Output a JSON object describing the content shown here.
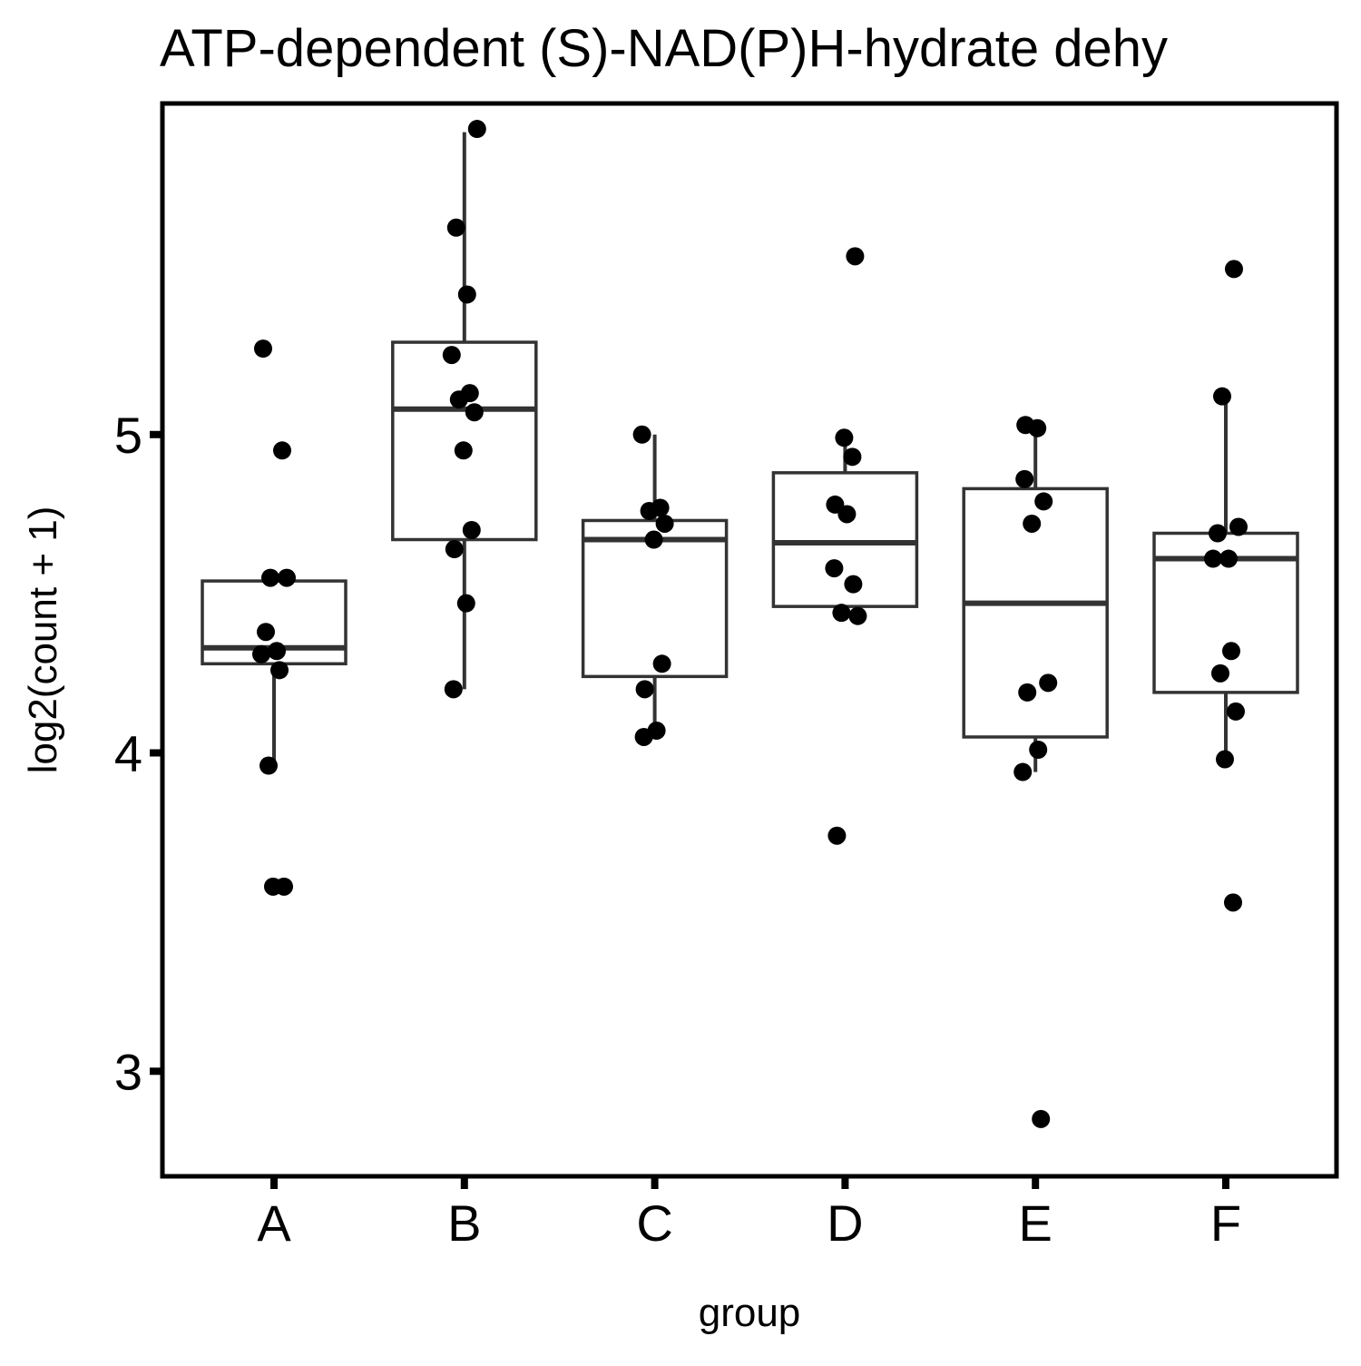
{
  "chart_data": {
    "type": "boxplot",
    "title": "ATP-dependent (S)-NAD(P)H-hydrate dehy",
    "xlabel": "group",
    "ylabel": "log2(count + 1)",
    "categories": [
      "A",
      "B",
      "C",
      "D",
      "E",
      "F"
    ],
    "y_ticks": [
      3,
      4,
      5
    ],
    "y_tick_labels": [
      "3",
      "4",
      "5"
    ],
    "ylim": [
      2.67,
      6.04
    ],
    "boxes": [
      {
        "group": "A",
        "lower_whisker": 3.95,
        "q1": 4.28,
        "median": 4.33,
        "q3": 4.54,
        "upper_whisker": 4.54
      },
      {
        "group": "B",
        "lower_whisker": 4.2,
        "q1": 4.67,
        "median": 5.08,
        "q3": 5.29,
        "upper_whisker": 5.95
      },
      {
        "group": "C",
        "lower_whisker": 4.05,
        "q1": 4.24,
        "median": 4.67,
        "q3": 4.73,
        "upper_whisker": 5.0
      },
      {
        "group": "D",
        "lower_whisker": 4.46,
        "q1": 4.46,
        "median": 4.66,
        "q3": 4.88,
        "upper_whisker": 4.98
      },
      {
        "group": "E",
        "lower_whisker": 3.94,
        "q1": 4.05,
        "median": 4.47,
        "q3": 4.83,
        "upper_whisker": 5.01
      },
      {
        "group": "F",
        "lower_whisker": 3.98,
        "q1": 4.19,
        "median": 4.61,
        "q3": 4.69,
        "upper_whisker": 5.12
      }
    ],
    "points": [
      {
        "group": "A",
        "values": [
          5.27,
          4.95,
          4.55,
          4.55,
          4.38,
          4.32,
          4.31,
          4.26,
          3.96,
          3.58,
          3.58
        ]
      },
      {
        "group": "B",
        "values": [
          5.96,
          5.65,
          5.44,
          5.25,
          5.13,
          5.11,
          5.07,
          4.95,
          4.7,
          4.64,
          4.47,
          4.2
        ]
      },
      {
        "group": "C",
        "values": [
          5.0,
          4.77,
          4.76,
          4.72,
          4.67,
          4.28,
          4.2,
          4.07,
          4.05
        ]
      },
      {
        "group": "D",
        "values": [
          5.56,
          4.99,
          4.93,
          4.78,
          4.75,
          4.58,
          4.53,
          4.44,
          4.43,
          3.74
        ]
      },
      {
        "group": "E",
        "values": [
          5.03,
          5.02,
          4.86,
          4.79,
          4.72,
          4.22,
          4.19,
          4.01,
          3.94,
          2.85
        ]
      },
      {
        "group": "F",
        "values": [
          5.52,
          5.12,
          4.71,
          4.69,
          4.61,
          4.61,
          4.32,
          4.25,
          4.13,
          3.98,
          3.53
        ]
      }
    ],
    "grid": false,
    "legend": "none",
    "colors": {
      "box_stroke": "#333333",
      "point_fill": "#000000",
      "panel_border": "#000000",
      "background": "#ffffff"
    }
  }
}
